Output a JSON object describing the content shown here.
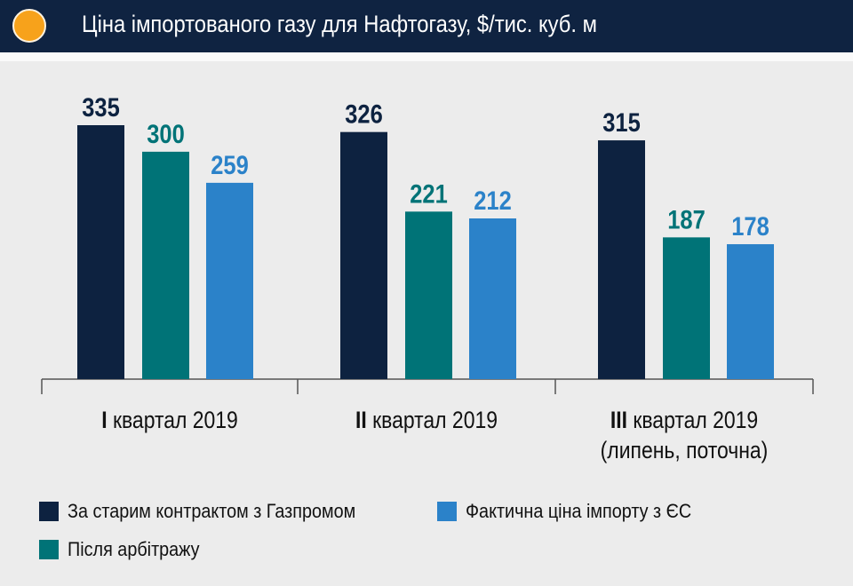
{
  "chart_data": {
    "type": "bar",
    "title": "Ціна імпортованого газу для Нафтогазу, $/тис. куб. м",
    "categories": [
      {
        "numeral": "I",
        "label": "квартал 2019",
        "note": ""
      },
      {
        "numeral": "II",
        "label": "квартал 2019",
        "note": ""
      },
      {
        "numeral": "III",
        "label": "квартал 2019",
        "note": "(липень, поточна)"
      }
    ],
    "series": [
      {
        "name": "За старим контрактом з Газпромом",
        "color": "#0d2240",
        "values": [
          335,
          326,
          315
        ]
      },
      {
        "name": "Після арбітражу",
        "color": "#007377",
        "values": [
          300,
          221,
          187
        ]
      },
      {
        "name": "Фактична ціна імпорту з ЄС",
        "color": "#2b82c9",
        "values": [
          259,
          212,
          178
        ]
      }
    ],
    "ylim": [
      0,
      335
    ],
    "grid": false,
    "legend_position": "bottom"
  }
}
